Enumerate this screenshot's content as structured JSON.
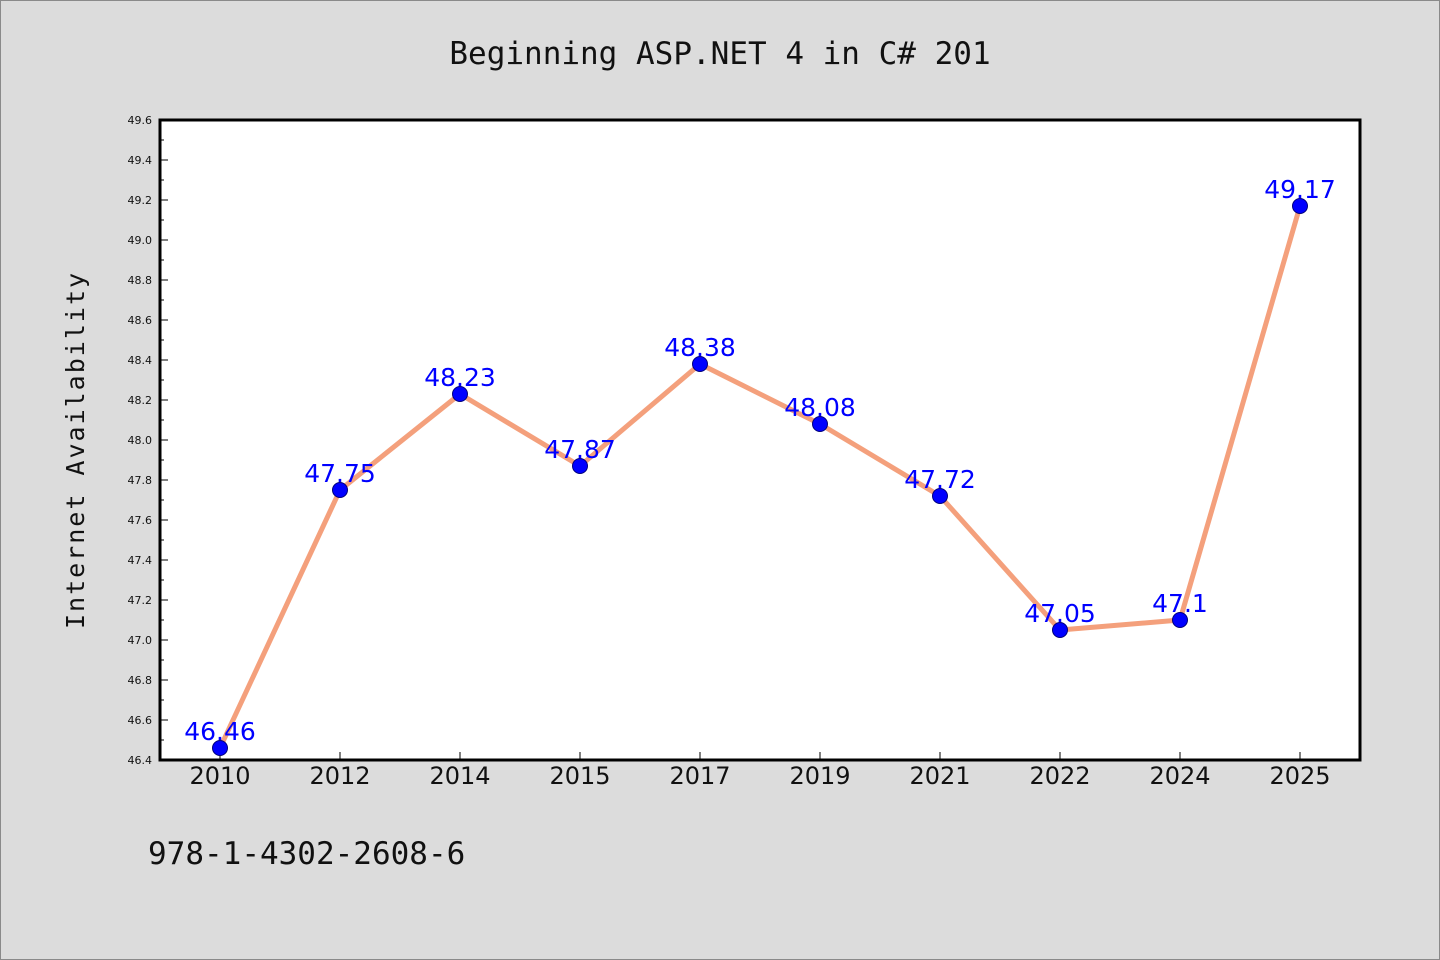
{
  "chart_data": {
    "type": "line",
    "title": "Beginning ASP.NET 4 in C# 201",
    "footer": "978-1-4302-2608-6",
    "xlabel": "",
    "ylabel": "Internet Availability",
    "categories": [
      "2010",
      "2012",
      "2014",
      "2015",
      "2017",
      "2019",
      "2021",
      "2022",
      "2024",
      "2025"
    ],
    "series": [
      {
        "values": [
          46.46,
          47.75,
          48.23,
          47.87,
          48.38,
          48.08,
          47.72,
          47.05,
          47.1,
          49.17
        ],
        "data_labels": [
          "46.46",
          "47.75",
          "48.23",
          "47.87",
          "48.38",
          "48.08",
          "47.72",
          "47.05",
          "47.1",
          "49.17"
        ],
        "line_color": "#f4a07c",
        "marker_color": "#0000ff"
      }
    ],
    "ylim": [
      46.4,
      49.6
    ],
    "yticks": [
      "46.4",
      "46.6",
      "46.8",
      "47.0",
      "47.2",
      "47.4",
      "47.6",
      "47.8",
      "48.0",
      "48.2",
      "48.4",
      "48.6",
      "48.8",
      "49.0",
      "49.2",
      "49.4",
      "49.6"
    ],
    "grid": false,
    "legend": "none",
    "label_color": "#0000ff",
    "background_color": "#dcdcdc",
    "plot_background": "#ffffff"
  }
}
